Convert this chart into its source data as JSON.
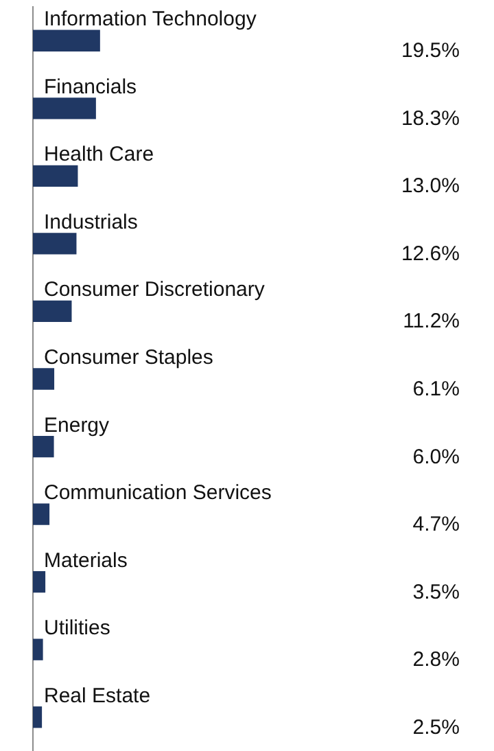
{
  "chart_data": {
    "type": "bar",
    "orientation": "horizontal",
    "categories": [
      "Information Technology",
      "Financials",
      "Health Care",
      "Industrials",
      "Consumer Discretionary",
      "Consumer Staples",
      "Energy",
      "Communication Services",
      "Materials",
      "Utilities",
      "Real Estate"
    ],
    "values": [
      19.5,
      18.3,
      13.0,
      12.6,
      11.2,
      6.1,
      6.0,
      4.7,
      3.5,
      2.8,
      2.5
    ],
    "color": "#203864",
    "value_labels": [
      "19.5%",
      "18.3%",
      "13.0%",
      "12.6%",
      "11.2%",
      "6.1%",
      "6.0%",
      "4.7%",
      "3.5%",
      "2.8%",
      "2.5%"
    ],
    "grid": false,
    "legend": false
  }
}
